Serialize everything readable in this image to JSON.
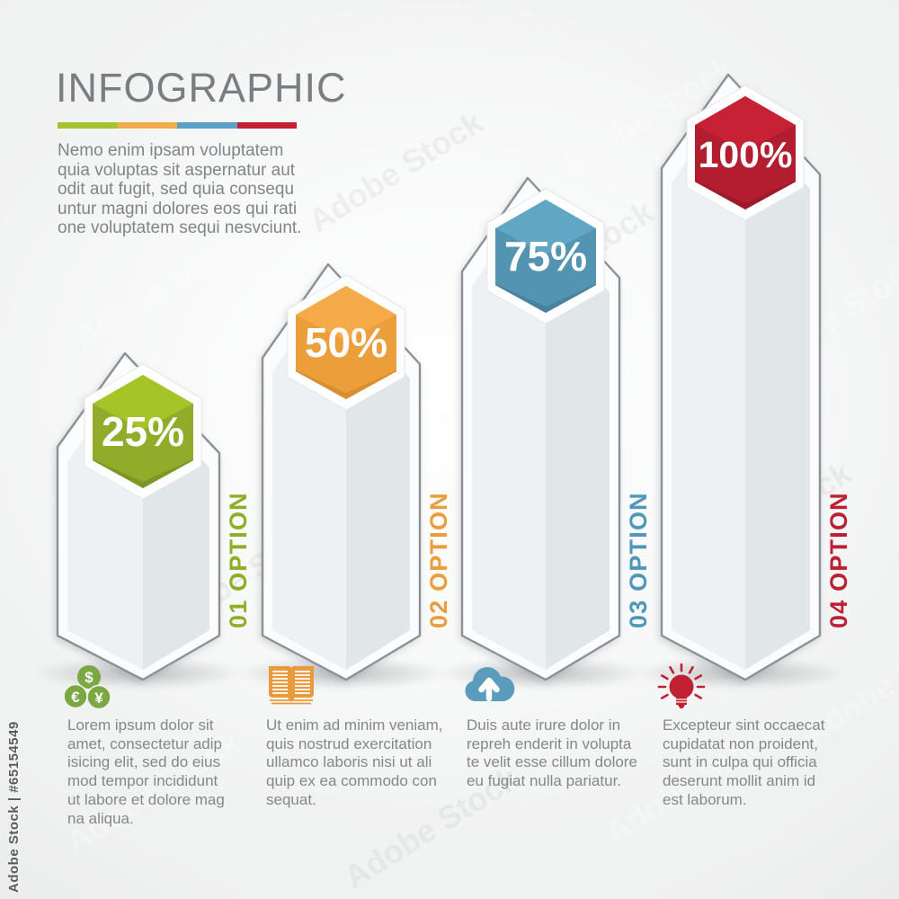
{
  "watermark": {
    "side_label": "Adobe Stock | #65154549",
    "tile_label": "Adobe Stock"
  },
  "header": {
    "title": "INFOGRAPHIC",
    "underline_colors": [
      "#a5c32e",
      "#f2ab4b",
      "#58a1c2",
      "#c22134"
    ],
    "intro_lines": [
      "Nemo enim ipsam voluptatem",
      "quia voluptas sit aspernatur aut",
      "odit aut fugit, sed quia consequ",
      "untur magni dolores eos qui rati",
      "one voluptatem sequi nesvciunt."
    ]
  },
  "chart_data": {
    "type": "bar",
    "title": "INFOGRAPHIC",
    "categories": [
      "01 OPTION",
      "02 OPTION",
      "03 OPTION",
      "04 OPTION"
    ],
    "values": [
      25,
      50,
      75,
      100
    ],
    "value_labels": [
      "25%",
      "50%",
      "75%",
      "100%"
    ],
    "unit": "%",
    "ylim": [
      0,
      100
    ],
    "series_colors": [
      "#92ae2b",
      "#eda03c",
      "#5596b4",
      "#b41f30"
    ],
    "grid": false,
    "legend_position": "none"
  },
  "columns": [
    {
      "option_label": "01 OPTION",
      "value_label": "25%",
      "icon": "coins-icon",
      "colors": {
        "bright": "#a5c427",
        "mid": "#90ac2a",
        "dark": "#7b9725",
        "label": "#8fad27",
        "icon": "#7ca844"
      },
      "feature_lines": [
        "Lorem ipsum dolor sit",
        "amet, consectetur adip",
        "isicing elit, sed do eius",
        "mod tempor incididunt",
        "ut labore et dolore mag",
        "na aliqua."
      ]
    },
    {
      "option_label": "02 OPTION",
      "value_label": "50%",
      "icon": "open-book-icon",
      "colors": {
        "bright": "#f5ab49",
        "mid": "#eb9e3a",
        "dark": "#d78f31",
        "label": "#eb9d3b",
        "icon": "#e89a3c"
      },
      "feature_lines": [
        "Ut enim ad minim veniam,",
        "quis nostrud exercitation",
        "ullamco laboris nisi ut ali",
        "quip ex ea commodo con",
        "sequat."
      ]
    },
    {
      "option_label": "03 OPTION",
      "value_label": "75%",
      "icon": "cloud-upload-icon",
      "colors": {
        "bright": "#61a6c4",
        "mid": "#5394b2",
        "dark": "#48829e",
        "label": "#5098ba",
        "icon": "#5b9cbd"
      },
      "feature_lines": [
        "Duis aute irure dolor in",
        "repreh enderit in volupta",
        "te velit esse cillum dolore",
        "eu fugiat nulla pariatur."
      ]
    },
    {
      "option_label": "04 OPTION",
      "value_label": "100%",
      "icon": "lightbulb-icon",
      "colors": {
        "bright": "#c62135",
        "mid": "#b21e2f",
        "dark": "#9e1a29",
        "label": "#bb2133",
        "icon": "#c02032"
      },
      "feature_lines": [
        "Excepteur sint occaecat",
        "cupidatat non proident,",
        "sunt in culpa qui officia",
        "deserunt mollit anim id",
        "est laborum."
      ]
    }
  ]
}
